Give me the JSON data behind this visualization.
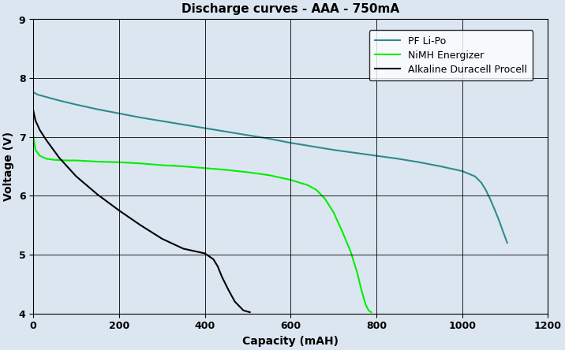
{
  "title": "Discharge curves - AAA - 750mA",
  "xlabel": "Capacity (mAH)",
  "ylabel": "Voltage (V)",
  "xlim": [
    0,
    1200
  ],
  "ylim": [
    4,
    9
  ],
  "xticks": [
    0,
    200,
    400,
    600,
    800,
    1000,
    1200
  ],
  "yticks": [
    4,
    5,
    6,
    7,
    8,
    9
  ],
  "bg_color": "#dce6f1",
  "plot_bg_color": "#dce6f1",
  "series": [
    {
      "label": "PF Li-Po",
      "color": "#2e8b8b",
      "x": [
        0,
        10,
        30,
        60,
        100,
        150,
        200,
        250,
        300,
        350,
        400,
        450,
        500,
        550,
        600,
        650,
        700,
        750,
        800,
        850,
        900,
        950,
        1000,
        1030,
        1045,
        1055,
        1065,
        1075,
        1085,
        1095,
        1105
      ],
      "y": [
        7.76,
        7.72,
        7.68,
        7.62,
        7.55,
        7.47,
        7.4,
        7.33,
        7.27,
        7.21,
        7.15,
        7.09,
        7.03,
        6.97,
        6.9,
        6.84,
        6.78,
        6.73,
        6.68,
        6.63,
        6.57,
        6.5,
        6.42,
        6.33,
        6.22,
        6.1,
        5.95,
        5.78,
        5.6,
        5.4,
        5.2
      ]
    },
    {
      "label": "NiMH Energizer",
      "color": "#00ee00",
      "x": [
        0,
        5,
        15,
        30,
        50,
        80,
        100,
        150,
        200,
        250,
        300,
        350,
        400,
        450,
        500,
        550,
        600,
        640,
        660,
        680,
        700,
        720,
        740,
        755,
        765,
        775,
        782,
        788
      ],
      "y": [
        7.02,
        6.78,
        6.68,
        6.63,
        6.61,
        6.6,
        6.6,
        6.58,
        6.57,
        6.55,
        6.52,
        6.5,
        6.47,
        6.44,
        6.4,
        6.35,
        6.27,
        6.18,
        6.1,
        5.95,
        5.72,
        5.4,
        5.05,
        4.7,
        4.4,
        4.15,
        4.05,
        4.02
      ]
    },
    {
      "label": "Alkaline Duracell Procell",
      "color": "#000000",
      "x": [
        0,
        5,
        15,
        30,
        60,
        100,
        150,
        200,
        250,
        300,
        350,
        400,
        420,
        430,
        440,
        455,
        470,
        490,
        505
      ],
      "y": [
        7.45,
        7.28,
        7.12,
        6.95,
        6.65,
        6.33,
        6.02,
        5.75,
        5.5,
        5.27,
        5.1,
        5.02,
        4.92,
        4.8,
        4.62,
        4.4,
        4.2,
        4.05,
        4.02
      ]
    }
  ],
  "legend_loc": "upper right",
  "title_fontsize": 11,
  "label_fontsize": 10,
  "tick_fontsize": 9,
  "legend_fontsize": 9
}
